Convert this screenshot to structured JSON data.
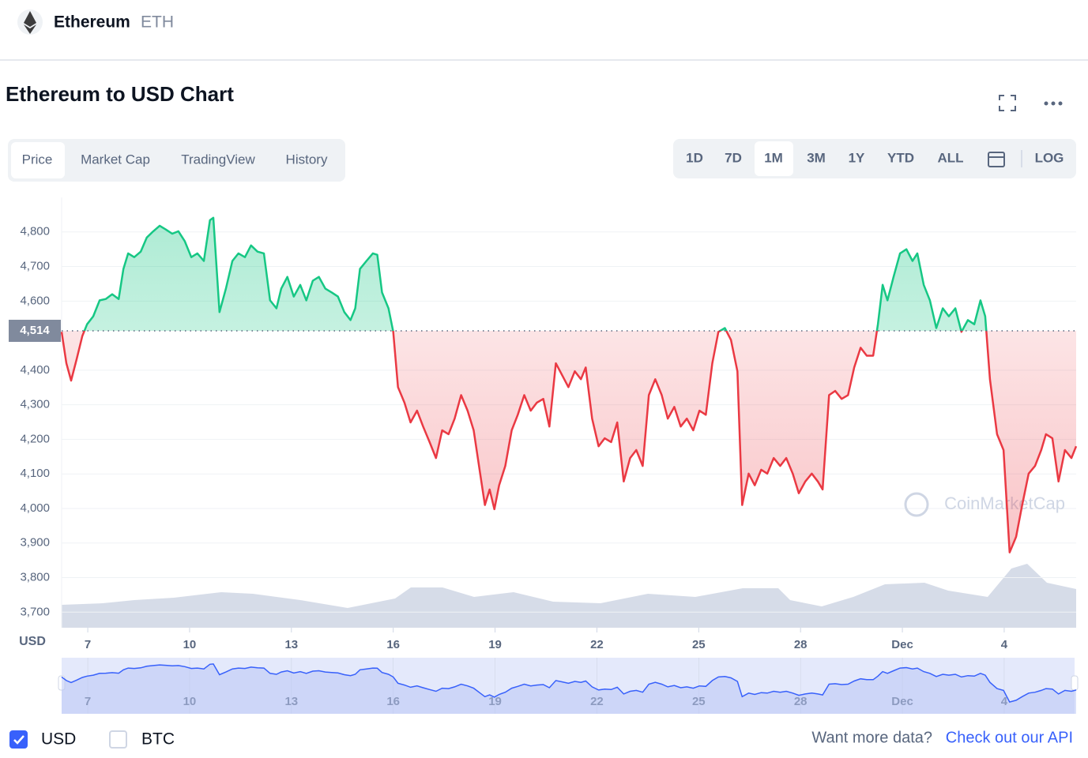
{
  "header": {
    "name": "Ethereum",
    "symbol": "ETH"
  },
  "title": "Ethereum to USD Chart",
  "tabs": [
    "Price",
    "Market Cap",
    "TradingView",
    "History"
  ],
  "ranges": [
    "1D",
    "7D",
    "1M",
    "3M",
    "1Y",
    "YTD",
    "ALL"
  ],
  "log_button": "LOG",
  "chart_data": {
    "type": "line",
    "ylabel": "USD",
    "watermark": "CoinMarketCap",
    "reference": {
      "value": 4514,
      "label": "4,514"
    },
    "colors": {
      "above": "#16c784",
      "below": "#ea3943"
    },
    "xlim": [
      6.23,
      36.12
    ],
    "xticks": [
      7,
      10,
      13,
      16,
      19,
      22,
      25,
      28,
      {
        "value": 31,
        "label": "Dec"
      },
      {
        "value": 34,
        "label": "4"
      }
    ],
    "ylim": [
      3655,
      4900
    ],
    "yticks": [
      {
        "value": 3700,
        "label": "3,700"
      },
      {
        "value": 3800,
        "label": "3,800"
      },
      {
        "value": 3900,
        "label": "3,900"
      },
      {
        "value": 4000,
        "label": "4,000"
      },
      {
        "value": 4100,
        "label": "4,100"
      },
      {
        "value": 4200,
        "label": "4,200"
      },
      {
        "value": 4300,
        "label": "4,300"
      },
      {
        "value": 4400,
        "label": "4,400"
      },
      {
        "value": 4600,
        "label": "4,600"
      },
      {
        "value": 4700,
        "label": "4,700"
      },
      {
        "value": 4800,
        "label": "4,800"
      }
    ],
    "grid": true,
    "x": [
      6.23,
      6.37,
      6.51,
      6.67,
      6.84,
      6.98,
      7.16,
      7.35,
      7.53,
      7.72,
      7.91,
      8.05,
      8.19,
      8.37,
      8.56,
      8.74,
      8.93,
      9.12,
      9.3,
      9.49,
      9.67,
      9.86,
      10.05,
      10.23,
      10.42,
      10.6,
      10.7,
      10.88,
      11.07,
      11.26,
      11.44,
      11.63,
      11.81,
      12.0,
      12.19,
      12.37,
      12.56,
      12.7,
      12.88,
      13.07,
      13.26,
      13.44,
      13.63,
      13.81,
      14.0,
      14.19,
      14.37,
      14.56,
      14.74,
      14.88,
      15.02,
      15.21,
      15.4,
      15.53,
      15.67,
      15.86,
      16.0,
      16.14,
      16.33,
      16.51,
      16.7,
      16.88,
      17.07,
      17.26,
      17.44,
      17.63,
      17.81,
      18.0,
      18.19,
      18.37,
      18.56,
      18.7,
      18.84,
      18.98,
      19.12,
      19.3,
      19.49,
      19.67,
      19.86,
      20.05,
      20.23,
      20.42,
      20.6,
      20.79,
      20.98,
      21.16,
      21.35,
      21.53,
      21.67,
      21.86,
      22.05,
      22.23,
      22.42,
      22.6,
      22.79,
      22.98,
      23.16,
      23.35,
      23.53,
      23.72,
      23.91,
      24.09,
      24.28,
      24.47,
      24.65,
      24.84,
      25.02,
      25.21,
      25.4,
      25.58,
      25.77,
      25.95,
      26.14,
      26.28,
      26.47,
      26.65,
      26.84,
      27.02,
      27.21,
      27.4,
      27.58,
      27.77,
      27.95,
      28.14,
      28.33,
      28.51,
      28.65,
      28.84,
      29.02,
      29.21,
      29.4,
      29.58,
      29.77,
      29.95,
      30.14,
      30.28,
      30.42,
      30.56,
      30.74,
      30.93,
      31.12,
      31.3,
      31.44,
      31.63,
      31.81,
      32.0,
      32.19,
      32.37,
      32.56,
      32.74,
      32.93,
      33.12,
      33.3,
      33.44,
      33.58,
      33.79,
      33.98,
      34.16,
      34.35,
      34.53,
      34.72,
      34.91,
      35.09,
      35.23,
      35.42,
      35.6,
      35.79,
      35.98,
      36.12
    ],
    "values": [
      4511,
      4420,
      4370,
      4431,
      4499,
      4533,
      4556,
      4602,
      4606,
      4620,
      4606,
      4693,
      4738,
      4727,
      4743,
      4784,
      4802,
      4818,
      4807,
      4795,
      4802,
      4773,
      4727,
      4738,
      4716,
      4834,
      4841,
      4568,
      4636,
      4716,
      4738,
      4727,
      4761,
      4743,
      4738,
      4602,
      4579,
      4636,
      4670,
      4613,
      4647,
      4602,
      4659,
      4670,
      4636,
      4625,
      4613,
      4568,
      4545,
      4579,
      4693,
      4716,
      4738,
      4734,
      4625,
      4579,
      4511,
      4351,
      4306,
      4249,
      4283,
      4237,
      4192,
      4146,
      4226,
      4215,
      4260,
      4328,
      4283,
      4226,
      4101,
      4010,
      4055,
      3998,
      4067,
      4123,
      4226,
      4271,
      4328,
      4283,
      4306,
      4317,
      4237,
      4420,
      4385,
      4351,
      4397,
      4374,
      4408,
      4260,
      4180,
      4203,
      4192,
      4249,
      4078,
      4146,
      4169,
      4123,
      4328,
      4374,
      4328,
      4260,
      4294,
      4237,
      4260,
      4226,
      4283,
      4271,
      4420,
      4511,
      4522,
      4488,
      4397,
      4010,
      4101,
      4067,
      4112,
      4101,
      4146,
      4123,
      4146,
      4101,
      4044,
      4078,
      4101,
      4078,
      4055,
      4328,
      4340,
      4317,
      4328,
      4408,
      4465,
      4442,
      4442,
      4533,
      4647,
      4602,
      4670,
      4738,
      4750,
      4716,
      4738,
      4647,
      4602,
      4522,
      4579,
      4556,
      4579,
      4511,
      4545,
      4533,
      4602,
      4556,
      4374,
      4215,
      4169,
      3873,
      3918,
      4010,
      4101,
      4123,
      4169,
      4215,
      4203,
      4078,
      4169,
      4146,
      4180
    ]
  },
  "currency_toggles": [
    {
      "label": "USD",
      "checked": true
    },
    {
      "label": "BTC",
      "checked": false
    }
  ],
  "footer": {
    "text": "Want more data?",
    "link": "Check out our API"
  }
}
